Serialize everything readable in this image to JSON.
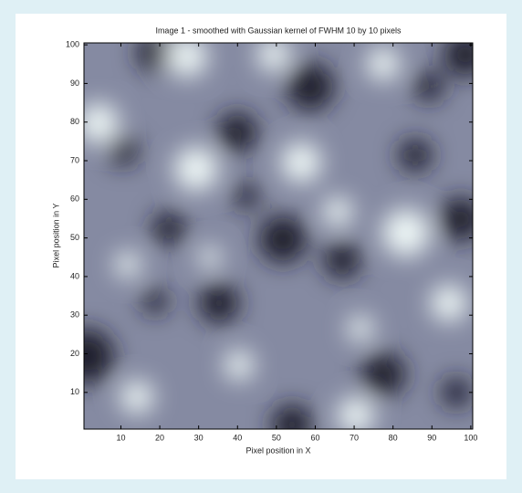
{
  "chart_data": {
    "type": "image",
    "title": "Image 1 - smoothed with Gaussian kernel of FWHM 10 by 10 pixels",
    "xlabel": "Pixel position in X",
    "ylabel": "Pixel position in Y",
    "xlim": [
      0.5,
      100.5
    ],
    "ylim": [
      0.5,
      100.5
    ],
    "xticks": [
      10,
      20,
      30,
      40,
      50,
      60,
      70,
      80,
      90,
      100
    ],
    "yticks": [
      10,
      20,
      30,
      40,
      50,
      60,
      70,
      80,
      90,
      100
    ]
  }
}
